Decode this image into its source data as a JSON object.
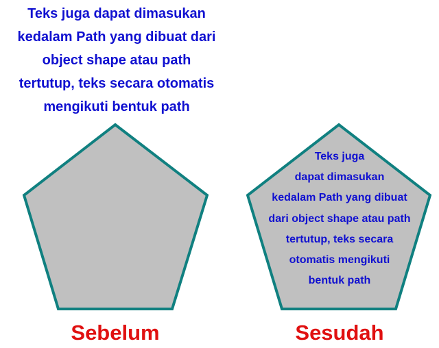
{
  "intro_text": {
    "lines": [
      "Teks juga dapat dimasukan",
      "kedalam Path yang dibuat dari",
      "object shape atau path",
      "tertutup, teks secara otomatis",
      "mengikuti bentuk path"
    ]
  },
  "inner_text": {
    "lines": [
      "Teks juga",
      "dapat dimasukan",
      "kedalam Path yang dibuat",
      "dari object shape atau path",
      "tertutup, teks secara",
      "otomatis mengikuti",
      "bentuk path"
    ]
  },
  "captions": {
    "before": "Sebelum",
    "after": "Sesudah"
  },
  "colors": {
    "text_blue": "#1010d0",
    "caption_red": "#e01010",
    "shape_fill": "#c0c0c0",
    "shape_stroke": "#108080"
  }
}
